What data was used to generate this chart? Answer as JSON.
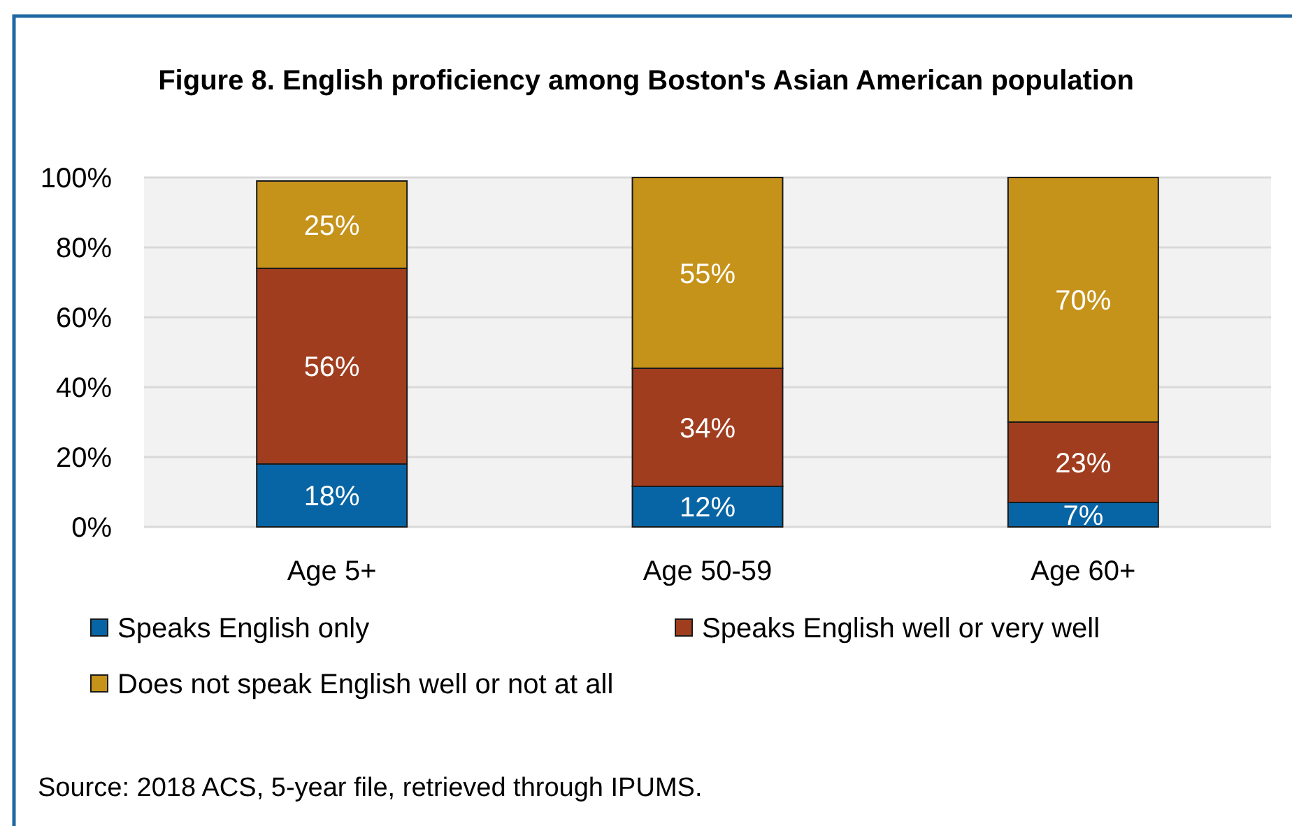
{
  "chart_data": {
    "type": "bar",
    "title": "Figure 8. English proficiency among Boston's Asian American population",
    "categories": [
      "Age 5+",
      "Age 50-59",
      "Age 60+"
    ],
    "series": [
      {
        "name": "Speaks English only",
        "color": "#0865a5",
        "values": [
          18,
          11.6,
          7
        ],
        "value_labels": [
          "18%",
          "12%",
          "7%"
        ]
      },
      {
        "name": "Speaks English well or very well",
        "color": "#a03d1f",
        "values": [
          56,
          33.8,
          23
        ],
        "value_labels": [
          "56%",
          "34%",
          "23%"
        ]
      },
      {
        "name": "Does not speak English well or not at all",
        "color": "#c5921a",
        "values": [
          25,
          54.6,
          70
        ],
        "value_labels": [
          "25%",
          "55%",
          "70%"
        ]
      }
    ],
    "stacked": true,
    "ylim": [
      0,
      100
    ],
    "yticks": [
      {
        "value": 0,
        "label": "0%"
      },
      {
        "value": 20,
        "label": "20%"
      },
      {
        "value": 40,
        "label": "40%"
      },
      {
        "value": 60,
        "label": "60%"
      },
      {
        "value": 80,
        "label": "80%"
      },
      {
        "value": 100,
        "label": "100%"
      }
    ],
    "grid": "y",
    "legend": "bottom",
    "annotations": [
      "Source: 2018 ACS, 5-year file, retrieved through IPUMS."
    ]
  }
}
